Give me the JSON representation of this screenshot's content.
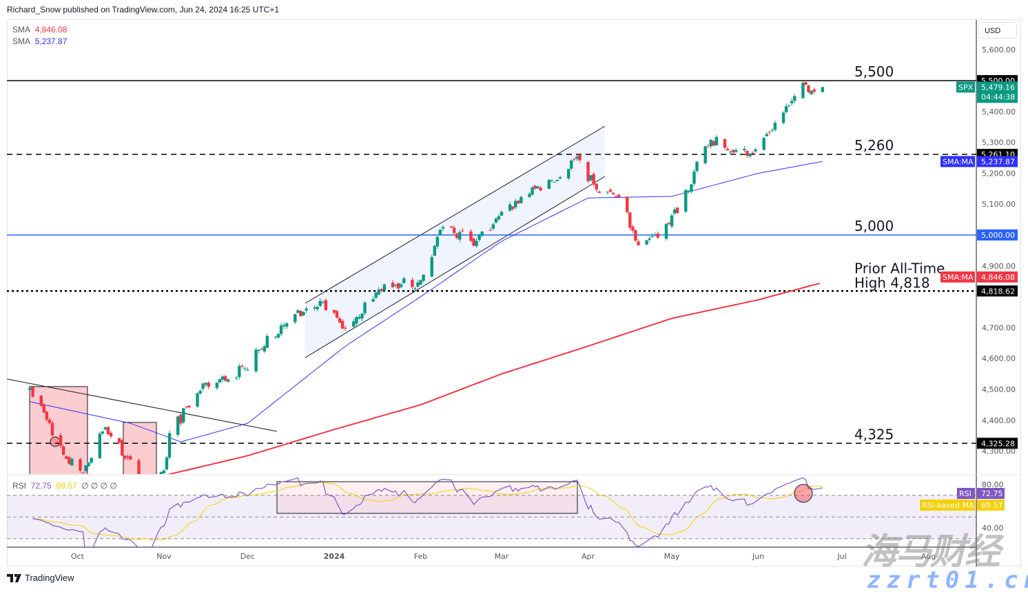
{
  "header": {
    "published": "Richard_Snow published on TradingView.com, Jun 24, 2024 16:25 UTC+1"
  },
  "legend": {
    "sma1_label": "SMA",
    "sma1_value": "4,846.08",
    "sma2_label": "SMA",
    "sma2_value": "5,237.87"
  },
  "rsi_legend": {
    "label": "RSI",
    "rsi": "72.75",
    "ma": "69.57",
    "extras": "∅ ∅ ∅ ∅"
  },
  "currency": "USD",
  "footer": {
    "brand": "TradingView"
  },
  "watermark": {
    "cn": "海马财经",
    "url": "zzrt01.cn"
  },
  "colors": {
    "up": "#089981",
    "down": "#f23645",
    "sma200": "#f23645",
    "sma50": "#2f2fff",
    "rsi": "#7e57c2",
    "rsi_ma": "#f5d000",
    "level_blue": "#2962ff"
  },
  "chart_data": {
    "type": "candlestick",
    "symbol": "SPX",
    "x_ticks": [
      "Oct",
      "Nov",
      "Dec",
      "2024",
      "Feb",
      "Mar",
      "Apr",
      "May",
      "Jun",
      "Jul",
      "Aug"
    ],
    "y_ticks": [
      "5,600.00",
      "5,400.00",
      "5,300.00",
      "5,200.00",
      "5,100.00",
      "4,900.00",
      "4,700.00",
      "4,600.00",
      "4,500.00",
      "4,400.00",
      "4,300.00"
    ],
    "rsi_ticks": [
      "80.00",
      "40.00"
    ],
    "closes": [
      [
        "2023-09-14",
        4505
      ],
      [
        "2023-09-20",
        4402
      ],
      [
        "2023-09-27",
        4275
      ],
      [
        "2023-10-03",
        4229
      ],
      [
        "2023-10-11",
        4377
      ],
      [
        "2023-10-19",
        4278
      ],
      [
        "2023-10-27",
        4117
      ],
      [
        "2023-11-01",
        4237
      ],
      [
        "2023-11-03",
        4358
      ],
      [
        "2023-11-14",
        4495
      ],
      [
        "2023-11-30",
        4568
      ],
      [
        "2023-12-13",
        4707
      ],
      [
        "2023-12-28",
        4783
      ],
      [
        "2024-01-05",
        4697
      ],
      [
        "2024-01-19",
        4840
      ],
      [
        "2024-01-31",
        4846
      ],
      [
        "2024-02-09",
        5026
      ],
      [
        "2024-02-21",
        4981
      ],
      [
        "2024-03-08",
        5123
      ],
      [
        "2024-03-19",
        5178
      ],
      [
        "2024-03-28",
        5254
      ],
      [
        "2024-04-04",
        5147
      ],
      [
        "2024-04-12",
        5123
      ],
      [
        "2024-04-19",
        4967
      ],
      [
        "2024-04-30",
        5035
      ],
      [
        "2024-05-15",
        5308
      ],
      [
        "2024-05-23",
        5267
      ],
      [
        "2024-05-31",
        5277
      ],
      [
        "2024-06-12",
        5421
      ],
      [
        "2024-06-18",
        5487
      ],
      [
        "2024-06-21",
        5464
      ],
      [
        "2024-06-24",
        5479
      ]
    ],
    "sma200": [
      [
        "2023-10-27",
        4210
      ],
      [
        "2023-12-01",
        4285
      ],
      [
        "2024-01-01",
        4370
      ],
      [
        "2024-02-01",
        4450
      ],
      [
        "2024-03-01",
        4550
      ],
      [
        "2024-04-01",
        4640
      ],
      [
        "2024-05-01",
        4730
      ],
      [
        "2024-06-01",
        4790
      ],
      [
        "2024-06-24",
        4846
      ]
    ],
    "sma50": [
      [
        "2023-09-14",
        4460
      ],
      [
        "2023-10-20",
        4390
      ],
      [
        "2023-11-07",
        4330
      ],
      [
        "2023-12-01",
        4390
      ],
      [
        "2024-01-05",
        4640
      ],
      [
        "2024-02-01",
        4800
      ],
      [
        "2024-03-01",
        4980
      ],
      [
        "2024-04-01",
        5120
      ],
      [
        "2024-05-01",
        5125
      ],
      [
        "2024-06-01",
        5200
      ],
      [
        "2024-06-24",
        5238
      ]
    ],
    "levels": [
      {
        "label": "5,500",
        "value": 5500,
        "axis": "5,500.00",
        "style": "solid",
        "color": "#000000"
      },
      {
        "label": "5,260",
        "value": 5261.1,
        "axis": "5,261.10",
        "style": "dashed",
        "color": "#000000"
      },
      {
        "label": "5,000",
        "value": 5000,
        "axis": "5,000.00",
        "style": "solid",
        "color": "#2962ff"
      },
      {
        "label": "Prior All-Time",
        "label2": "High 4,818",
        "value": 4818.62,
        "axis": "4,818.62",
        "style": "dotted",
        "color": "#000000"
      },
      {
        "label": "4,325",
        "value": 4325.28,
        "axis": "4,325.28",
        "style": "dashed",
        "color": "#000000"
      }
    ],
    "last": {
      "symbol": "SPX",
      "price": "5,479.16",
      "countdown": "04:44:38"
    },
    "sma50_tag": {
      "name": "SMA:MA",
      "value": "5,237.87"
    },
    "sma200_tag": {
      "name": "SMA:MA",
      "value": "4,846.08"
    },
    "rsi_tag": {
      "name": "RSI",
      "value": "72.75"
    },
    "rsi_ma_tag": {
      "name": "RSI-based MA",
      "value": "69.57"
    },
    "rsi_levels": [
      70,
      50,
      30
    ]
  }
}
